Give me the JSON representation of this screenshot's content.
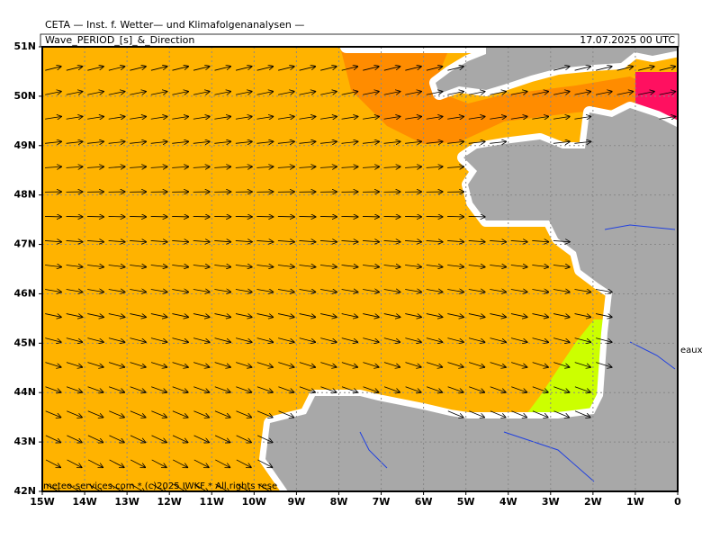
{
  "header": "CETA — Inst. f. Wetter— und Klimafolgenanalysen —",
  "title": "Wave_PERIOD_[s]_&_Direction",
  "date": "17.07.2025 00 UTC",
  "lat_labels": [
    "51N",
    "50N",
    "49N",
    "48N",
    "47N",
    "46N",
    "45N",
    "44N",
    "43N",
    "42N"
  ],
  "lon_labels": [
    "15W",
    "14W",
    "13W",
    "12W",
    "11W",
    "10W",
    "9W",
    "8W",
    "7W",
    "6W",
    "5W",
    "4W",
    "3W",
    "2W",
    "1W",
    "0"
  ],
  "credit": "meteo-services.com * (c)2025 IWKF * All rights rese",
  "place_label": "eaux"
}
